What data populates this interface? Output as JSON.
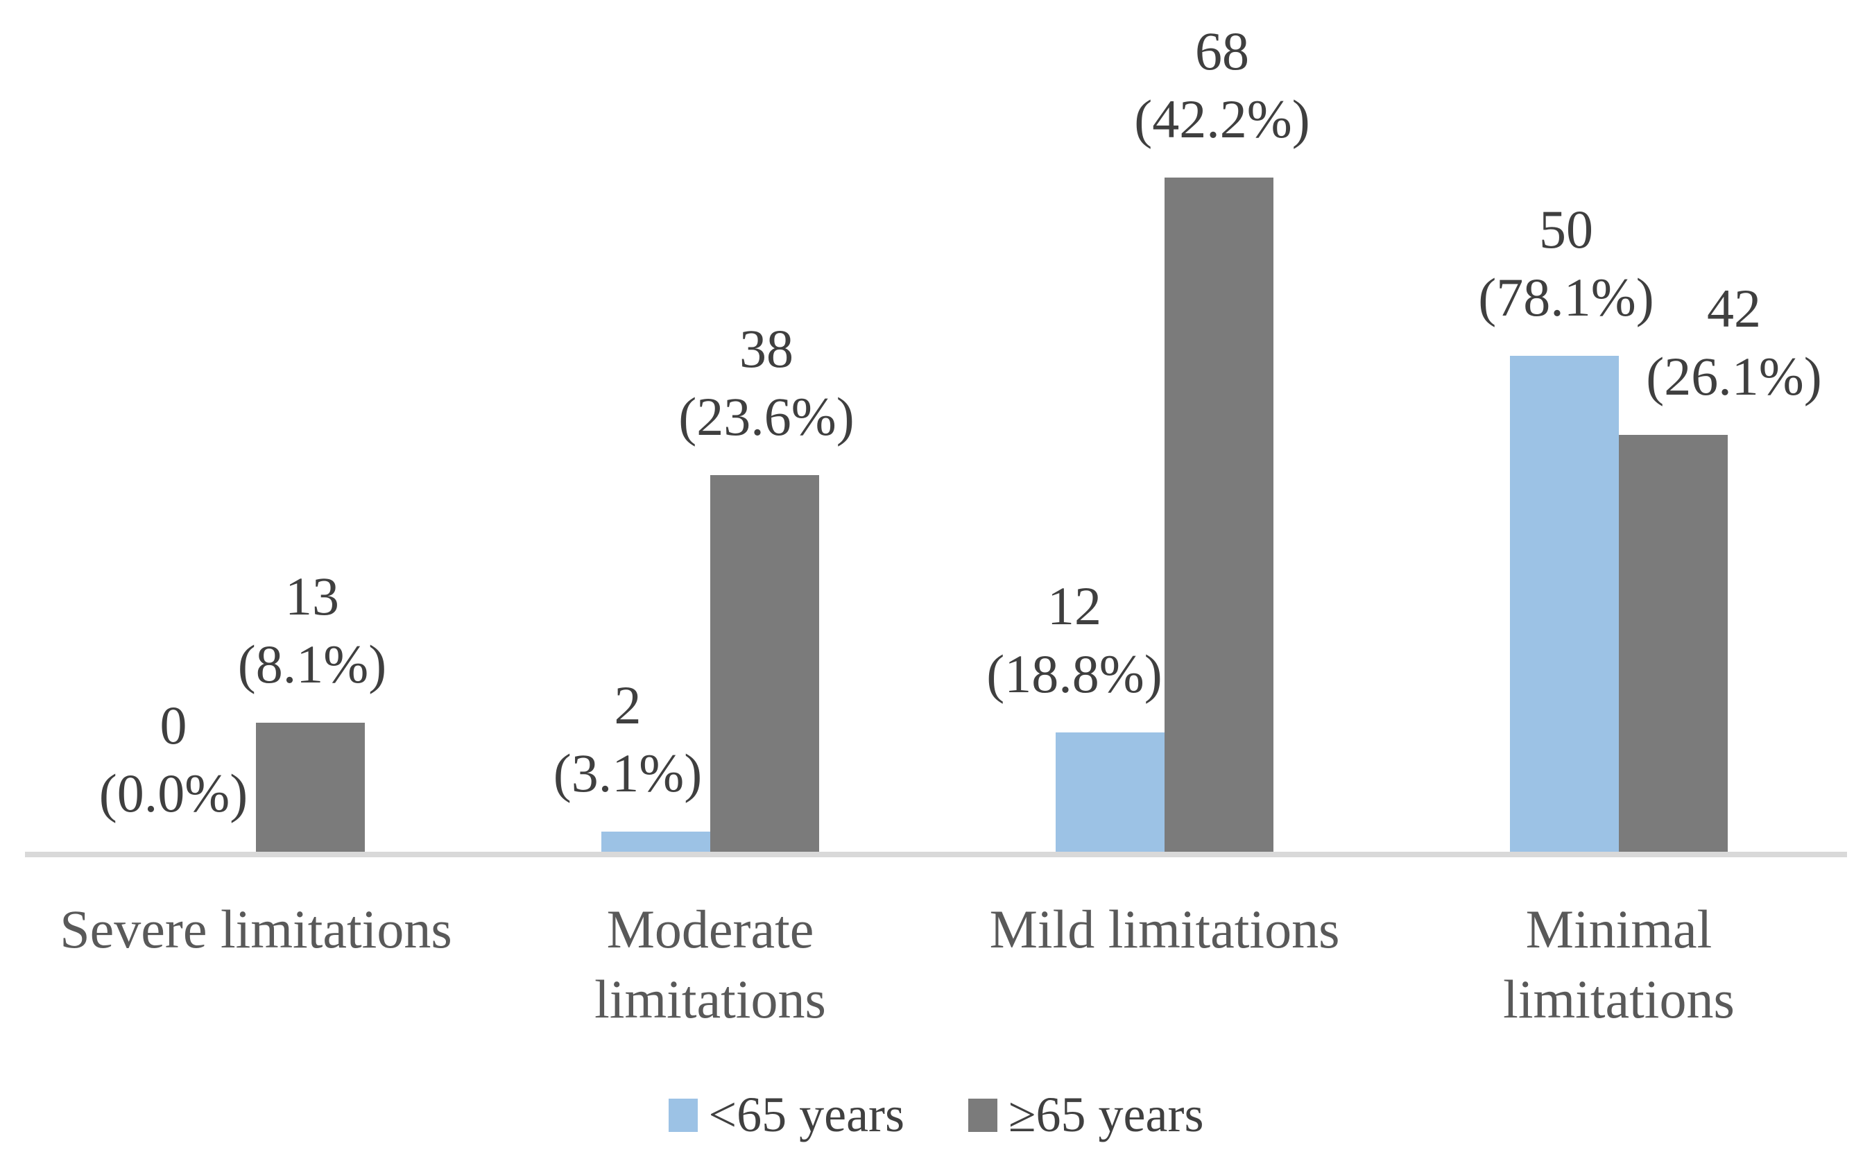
{
  "chart_data": {
    "type": "bar",
    "title": "",
    "xlabel": "",
    "ylabel": "",
    "categories": [
      "Severe limitations",
      "Moderate\nlimitations",
      "Mild limitations",
      "Minimal\nlimitations"
    ],
    "series": [
      {
        "name": "<65 years",
        "color": "#9CC2E5",
        "values": [
          0,
          2,
          12,
          50
        ],
        "percent_labels": [
          "(0.0%)",
          "(3.1%)",
          "(18.8%)",
          "(78.1%)"
        ]
      },
      {
        "name": "≥65 years",
        "color": "#7B7B7B",
        "values": [
          13,
          38,
          68,
          42
        ],
        "percent_labels": [
          "(8.1%)",
          "(23.6%)",
          "(42.2%)",
          "(26.1%)"
        ]
      }
    ],
    "data_label_pattern": "{count}\n{percent}",
    "value_axis": {
      "visible": false,
      "min": 0,
      "max": 70
    },
    "category_axis": {
      "visible": true
    },
    "gridlines": false,
    "legend_position": "bottom",
    "colors": {
      "axis_line": "#D9D9D9",
      "data_label_text": "#3F3F3F",
      "category_text": "#595959",
      "legend_text": "#404040",
      "background": "#FFFFFF"
    }
  }
}
